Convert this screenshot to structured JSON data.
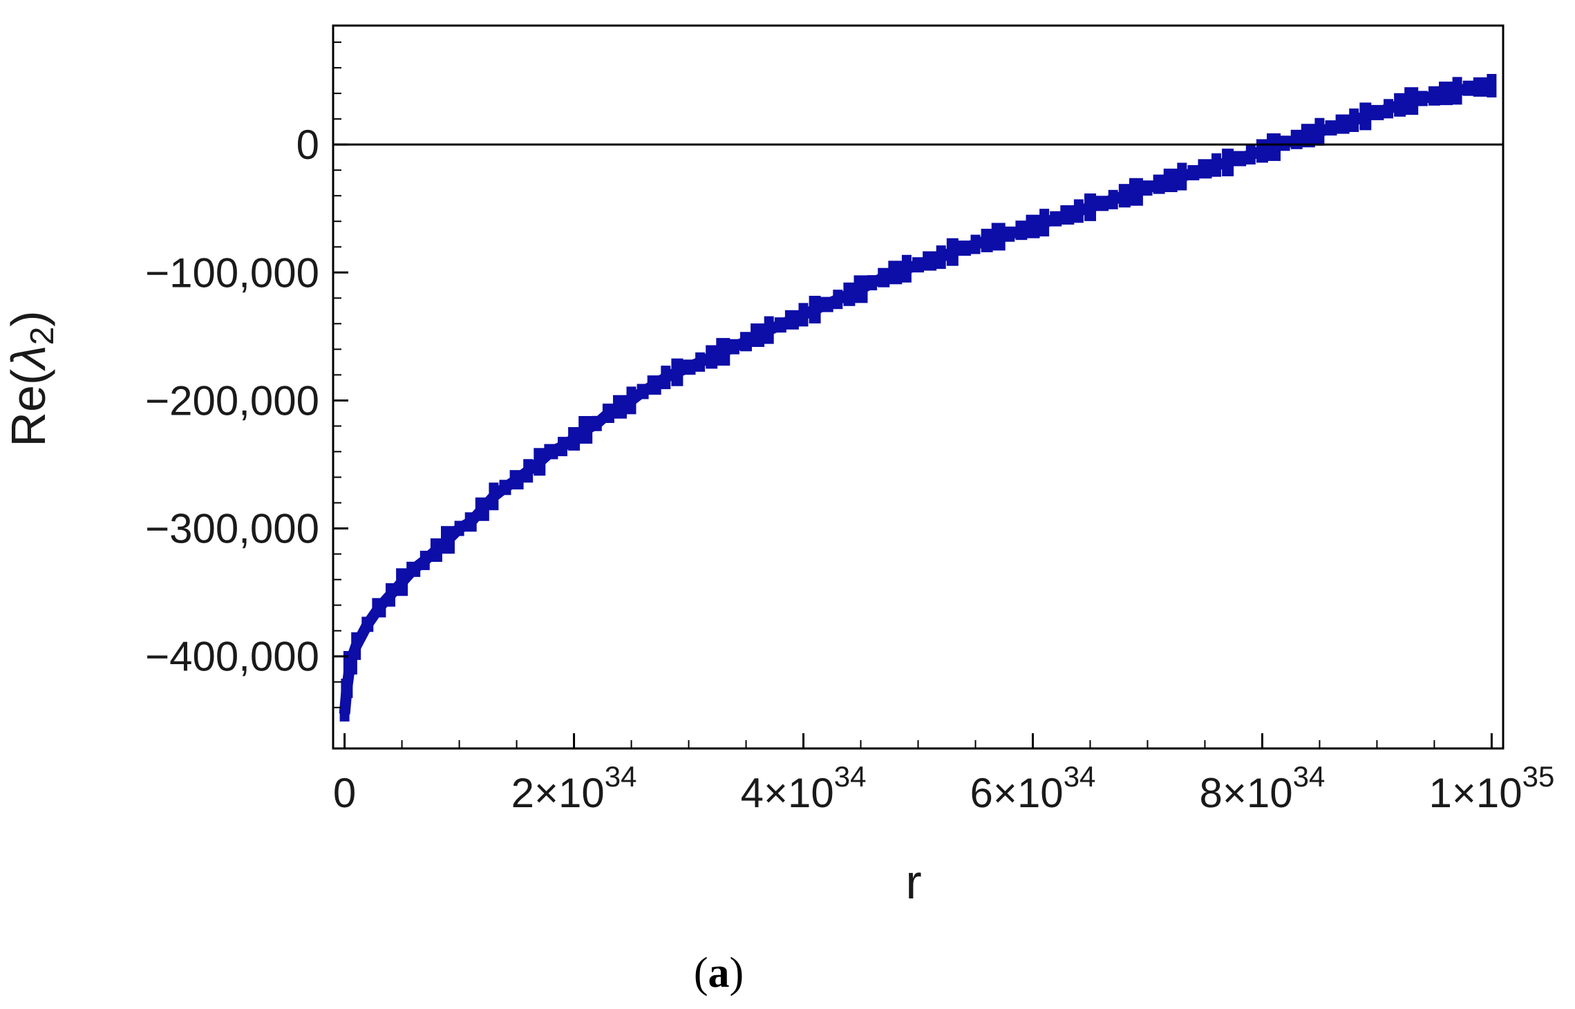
{
  "chart_data": {
    "type": "scatter",
    "xlabel": "r",
    "ylabel_prefix": "Re(",
    "ylabel_symbol": "λ",
    "ylabel_subscript": "2",
    "ylabel_suffix": ")",
    "xlim": [
      -1e+33,
      1.01e+35
    ],
    "ylim": [
      -472000,
      93000
    ],
    "x_ticks": [
      {
        "value": 0,
        "mantissa": "0",
        "exponent": ""
      },
      {
        "value": 2e+34,
        "mantissa": "2×10",
        "exponent": "34"
      },
      {
        "value": 4e+34,
        "mantissa": "4×10",
        "exponent": "34"
      },
      {
        "value": 6e+34,
        "mantissa": "6×10",
        "exponent": "34"
      },
      {
        "value": 8e+34,
        "mantissa": "8×10",
        "exponent": "34"
      },
      {
        "value": 1e+35,
        "mantissa": "1×10",
        "exponent": "35"
      }
    ],
    "y_ticks": [
      {
        "value": 0,
        "label": "0"
      },
      {
        "value": -100000,
        "label": "−100,000"
      },
      {
        "value": -200000,
        "label": "−200,000"
      },
      {
        "value": -300000,
        "label": "−300,000"
      },
      {
        "value": -400000,
        "label": "−400,000"
      }
    ],
    "zero_line": true,
    "grid": false,
    "series": [
      {
        "color": "#0d0da8",
        "points": [
          [
            0,
            -445000
          ],
          [
            2e+32,
            -425000
          ],
          [
            5e+32,
            -405000
          ],
          [
            1e+33,
            -392000
          ],
          [
            2e+33,
            -375000
          ],
          [
            3e+33,
            -362000
          ],
          [
            4e+33,
            -352000
          ],
          [
            5e+33,
            -342000
          ],
          [
            6e+33,
            -332000
          ],
          [
            7e+33,
            -325000
          ],
          [
            8e+33,
            -317000
          ],
          [
            9e+33,
            -309000
          ],
          [
            1e+34,
            -300000
          ],
          [
            1.1e+34,
            -295000
          ],
          [
            1.2e+34,
            -285000
          ],
          [
            1.3e+34,
            -275000
          ],
          [
            1.4e+34,
            -268000
          ],
          [
            1.5e+34,
            -262000
          ],
          [
            1.6e+34,
            -255000
          ],
          [
            1.7e+34,
            -248000
          ],
          [
            1.8e+34,
            -240000
          ],
          [
            1.9e+34,
            -236000
          ],
          [
            2e+34,
            -230000
          ],
          [
            2.1e+34,
            -223000
          ],
          [
            2.2e+34,
            -218000
          ],
          [
            2.3e+34,
            -210000
          ],
          [
            2.4e+34,
            -205000
          ],
          [
            2.5e+34,
            -200000
          ],
          [
            2.6e+34,
            -193000
          ],
          [
            2.7e+34,
            -188000
          ],
          [
            2.8e+34,
            -182000
          ],
          [
            2.9e+34,
            -178000
          ],
          [
            3e+34,
            -174000
          ],
          [
            3.1e+34,
            -170000
          ],
          [
            3.2e+34,
            -166000
          ],
          [
            3.3e+34,
            -162000
          ],
          [
            3.4e+34,
            -158000
          ],
          [
            3.5e+34,
            -154000
          ],
          [
            3.6e+34,
            -149000
          ],
          [
            3.7e+34,
            -145000
          ],
          [
            3.8e+34,
            -141000
          ],
          [
            3.9e+34,
            -137000
          ],
          [
            4e+34,
            -133000
          ],
          [
            4.1e+34,
            -129000
          ],
          [
            4.2e+34,
            -125000
          ],
          [
            4.3e+34,
            -121000
          ],
          [
            4.4e+34,
            -117000
          ],
          [
            4.5e+34,
            -113000
          ],
          [
            4.6e+34,
            -108000
          ],
          [
            4.7e+34,
            -104000
          ],
          [
            4.8e+34,
            -100000
          ],
          [
            4.9e+34,
            -97000
          ],
          [
            5e+34,
            -94000
          ],
          [
            5.1e+34,
            -91000
          ],
          [
            5.2e+34,
            -88000
          ],
          [
            5.3e+34,
            -84000
          ],
          [
            5.4e+34,
            -81000
          ],
          [
            5.5e+34,
            -78000
          ],
          [
            5.6e+34,
            -75000
          ],
          [
            5.7e+34,
            -72000
          ],
          [
            5.8e+34,
            -70000
          ],
          [
            5.9e+34,
            -67000
          ],
          [
            6e+34,
            -64000
          ],
          [
            6.1e+34,
            -61000
          ],
          [
            6.2e+34,
            -58000
          ],
          [
            6.3e+34,
            -55000
          ],
          [
            6.4e+34,
            -52000
          ],
          [
            6.5e+34,
            -49000
          ],
          [
            6.6e+34,
            -46000
          ],
          [
            6.7e+34,
            -43000
          ],
          [
            6.8e+34,
            -40000
          ],
          [
            6.9e+34,
            -37000
          ],
          [
            7e+34,
            -34000
          ],
          [
            7.1e+34,
            -31000
          ],
          [
            7.2e+34,
            -28000
          ],
          [
            7.3e+34,
            -25000
          ],
          [
            7.4e+34,
            -22000
          ],
          [
            7.5e+34,
            -19000
          ],
          [
            7.6e+34,
            -16000
          ],
          [
            7.7e+34,
            -14000
          ],
          [
            7.8e+34,
            -11000
          ],
          [
            7.9e+34,
            -8000
          ],
          [
            8e+34,
            -5000
          ],
          [
            8.1e+34,
            -2000
          ],
          [
            8.2e+34,
            1000
          ],
          [
            8.3e+34,
            4000
          ],
          [
            8.4e+34,
            7000
          ],
          [
            8.5e+34,
            10000
          ],
          [
            8.6e+34,
            13000
          ],
          [
            8.7e+34,
            16000
          ],
          [
            8.8e+34,
            19000
          ],
          [
            8.9e+34,
            22000
          ],
          [
            9e+34,
            25000
          ],
          [
            9.1e+34,
            28000
          ],
          [
            9.2e+34,
            31000
          ],
          [
            9.3e+34,
            34000
          ],
          [
            9.4e+34,
            36000
          ],
          [
            9.5e+34,
            38000
          ],
          [
            9.6e+34,
            40000
          ],
          [
            9.7e+34,
            42000
          ],
          [
            9.8e+34,
            44000
          ],
          [
            9.9e+34,
            45000
          ],
          [
            1e+35,
            46000
          ]
        ]
      }
    ]
  },
  "caption": {
    "open": "(",
    "letter": "a",
    "close": ")"
  }
}
